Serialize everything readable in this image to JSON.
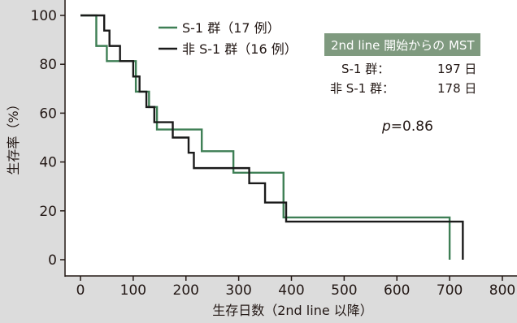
{
  "chart_data": {
    "type": "line",
    "step": true,
    "xlabel": "生存日数（2nd line 以降）",
    "ylabel": "生存率（%）",
    "xlim": [
      0,
      800
    ],
    "ylim": [
      0,
      100
    ],
    "xticks": [
      "0",
      "100",
      "200",
      "300",
      "400",
      "500",
      "600",
      "700",
      "800"
    ],
    "yticks": [
      "0",
      "20",
      "40",
      "60",
      "80",
      "100"
    ],
    "grid": false,
    "legend_position": "top-center",
    "series": [
      {
        "name": "S-1 群（17 例）",
        "color": "#3e7f55",
        "x": [
          0,
          25,
          30,
          50,
          100,
          105,
          120,
          130,
          145,
          230,
          290,
          385,
          700
        ],
        "y": [
          100,
          100,
          87.5,
          81.3,
          81.3,
          68.8,
          68.8,
          62.5,
          53.3,
          44.4,
          35.6,
          17.3,
          0
        ]
      },
      {
        "name": "非 S-1 群（16 例）",
        "color": "#1a1a1a",
        "x": [
          0,
          45,
          55,
          75,
          100,
          112,
          125,
          140,
          150,
          175,
          205,
          215,
          320,
          350,
          390,
          725
        ],
        "y": [
          100,
          93.8,
          87.5,
          81.3,
          75,
          68.8,
          62.5,
          56.3,
          56.3,
          50,
          43.8,
          37.5,
          31.3,
          23.4,
          15.6,
          0
        ]
      }
    ]
  },
  "mst_box": {
    "header": "2nd line 開始からの MST",
    "rows": [
      {
        "group": "S-1 群：",
        "value": "197 日"
      },
      {
        "group": "非 S-1 群：",
        "value": "178 日"
      }
    ]
  },
  "p_value": {
    "label": "p",
    "value": "=0.86"
  },
  "colors": {
    "background": "#dcdcdc",
    "plot_area": "#ffffff",
    "header_bg": "#7f9a7f",
    "s1": "#3e7f55",
    "non_s1": "#1a1a1a"
  }
}
